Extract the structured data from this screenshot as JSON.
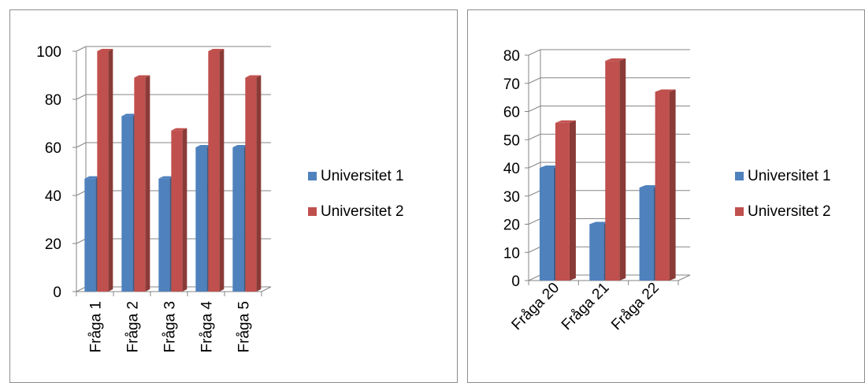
{
  "colors": {
    "series1": "#4f81bd",
    "series2": "#c0504d",
    "grid": "#868686",
    "axis": "#868686"
  },
  "chart_data": [
    {
      "type": "bar",
      "style": "3d-clustered-column",
      "categories": [
        "Fråga 1",
        "Fråga 2",
        "Fråga 3",
        "Fråga 4",
        "Fråga 5"
      ],
      "series": [
        {
          "name": "Universitet 1",
          "values": [
            47,
            73,
            47,
            60,
            60
          ]
        },
        {
          "name": "Universitet 2",
          "values": [
            100,
            89,
            67,
            100,
            89
          ]
        }
      ],
      "yticks": [
        "0",
        "20",
        "40",
        "60",
        "80",
        "100"
      ],
      "ylim": [
        0,
        100
      ],
      "x_label_rotation": "vertical",
      "legend_position": "right",
      "grid": true
    },
    {
      "type": "bar",
      "style": "3d-clustered-column",
      "categories": [
        "Fråga 20",
        "Fråga 21",
        "Fråga 22"
      ],
      "series": [
        {
          "name": "Universitet 1",
          "values": [
            40,
            20,
            33
          ]
        },
        {
          "name": "Universitet 2",
          "values": [
            56,
            78,
            67
          ]
        }
      ],
      "yticks": [
        "0",
        "10",
        "20",
        "30",
        "40",
        "50",
        "60",
        "70",
        "80"
      ],
      "ylim": [
        0,
        80
      ],
      "x_label_rotation": "diagonal",
      "legend_position": "right",
      "grid": true
    }
  ]
}
